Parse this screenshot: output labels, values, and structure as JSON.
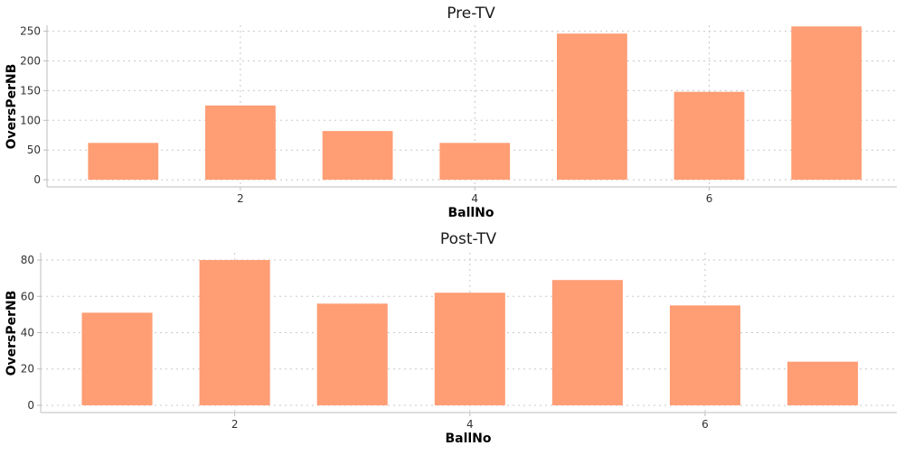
{
  "chart_data": [
    {
      "type": "bar",
      "title": "Pre-TV",
      "xlabel": "BallNo",
      "ylabel": "OversPerNB",
      "x": [
        1,
        2,
        3,
        4,
        5,
        6,
        7
      ],
      "values": [
        62,
        125,
        82,
        62,
        246,
        148,
        258
      ],
      "xticks": [
        2,
        4,
        6
      ],
      "yticks": [
        0,
        50,
        100,
        150,
        200,
        250
      ],
      "ylim": [
        -12,
        260
      ],
      "xlim": [
        0.35,
        7.6
      ],
      "grid": true,
      "color": "#ff9d74"
    },
    {
      "type": "bar",
      "title": "Post-TV",
      "xlabel": "BallNo",
      "ylabel": "OversPerNB",
      "x": [
        1,
        2,
        3,
        4,
        5,
        6,
        7
      ],
      "values": [
        51,
        80,
        56,
        62,
        69,
        55,
        24
      ],
      "xticks": [
        2,
        4,
        6
      ],
      "yticks": [
        0,
        20,
        40,
        60,
        80
      ],
      "ylim": [
        -4,
        84
      ],
      "xlim": [
        0.35,
        7.63
      ],
      "grid": true,
      "color": "#ff9d74"
    }
  ]
}
